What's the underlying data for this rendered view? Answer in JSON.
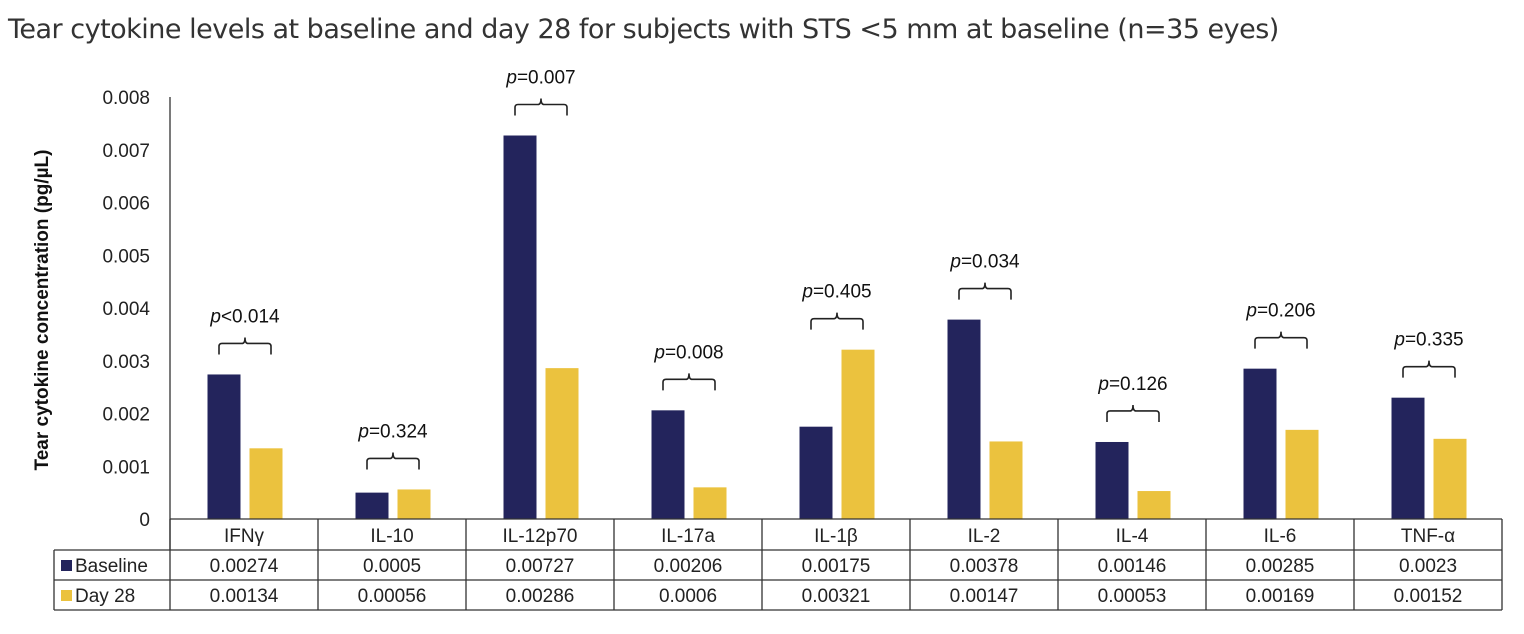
{
  "chart_data": {
    "type": "bar",
    "title": "Tear cytokine levels at baseline and day 28 for subjects with STS <5 mm at baseline (n=35 eyes)",
    "xlabel": "",
    "ylabel": "Tear cytokine concentration (pg/µL)",
    "ylim": [
      0,
      0.008
    ],
    "yticks": [
      "0",
      "0.001",
      "0.002",
      "0.003",
      "0.004",
      "0.005",
      "0.006",
      "0.007",
      "0.008"
    ],
    "ytick_values": [
      0,
      0.001,
      0.002,
      0.003,
      0.004,
      0.005,
      0.006,
      0.007,
      0.008
    ],
    "grid": false,
    "legend": "data-table-left",
    "categories": [
      "IFNγ",
      "IL-10",
      "IL-12p70",
      "IL-17a",
      "IL-1β",
      "IL-2",
      "IL-4",
      "IL-6",
      "TNF-α"
    ],
    "series": [
      {
        "name": "Baseline",
        "color": "#23245c",
        "values": [
          0.00274,
          0.0005,
          0.00727,
          0.00206,
          0.00175,
          0.00378,
          0.00146,
          0.00285,
          0.0023
        ],
        "labels": [
          "0.00274",
          "0.0005",
          "0.00727",
          "0.00206",
          "0.00175",
          "0.00378",
          "0.00146",
          "0.00285",
          "0.0023"
        ]
      },
      {
        "name": "Day 28",
        "color": "#ebc23e",
        "values": [
          0.00134,
          0.00056,
          0.00286,
          0.0006,
          0.00321,
          0.00147,
          0.00053,
          0.00169,
          0.00152
        ],
        "labels": [
          "0.00134",
          "0.00056",
          "0.00286",
          "0.0006",
          "0.00321",
          "0.00147",
          "0.00053",
          "0.00169",
          "0.00152"
        ]
      }
    ],
    "annotations": [
      {
        "p_italic": "p",
        "rest": "<0.014"
      },
      {
        "p_italic": "p",
        "rest": "=0.324"
      },
      {
        "p_italic": "p",
        "rest": "=0.007"
      },
      {
        "p_italic": "p",
        "rest": "=0.008"
      },
      {
        "p_italic": "p",
        "rest": "=0.405"
      },
      {
        "p_italic": "p",
        "rest": "=0.034"
      },
      {
        "p_italic": "p",
        "rest": "=0.126"
      },
      {
        "p_italic": "p",
        "rest": "=0.206"
      },
      {
        "p_italic": "p",
        "rest": "=0.335"
      }
    ]
  }
}
